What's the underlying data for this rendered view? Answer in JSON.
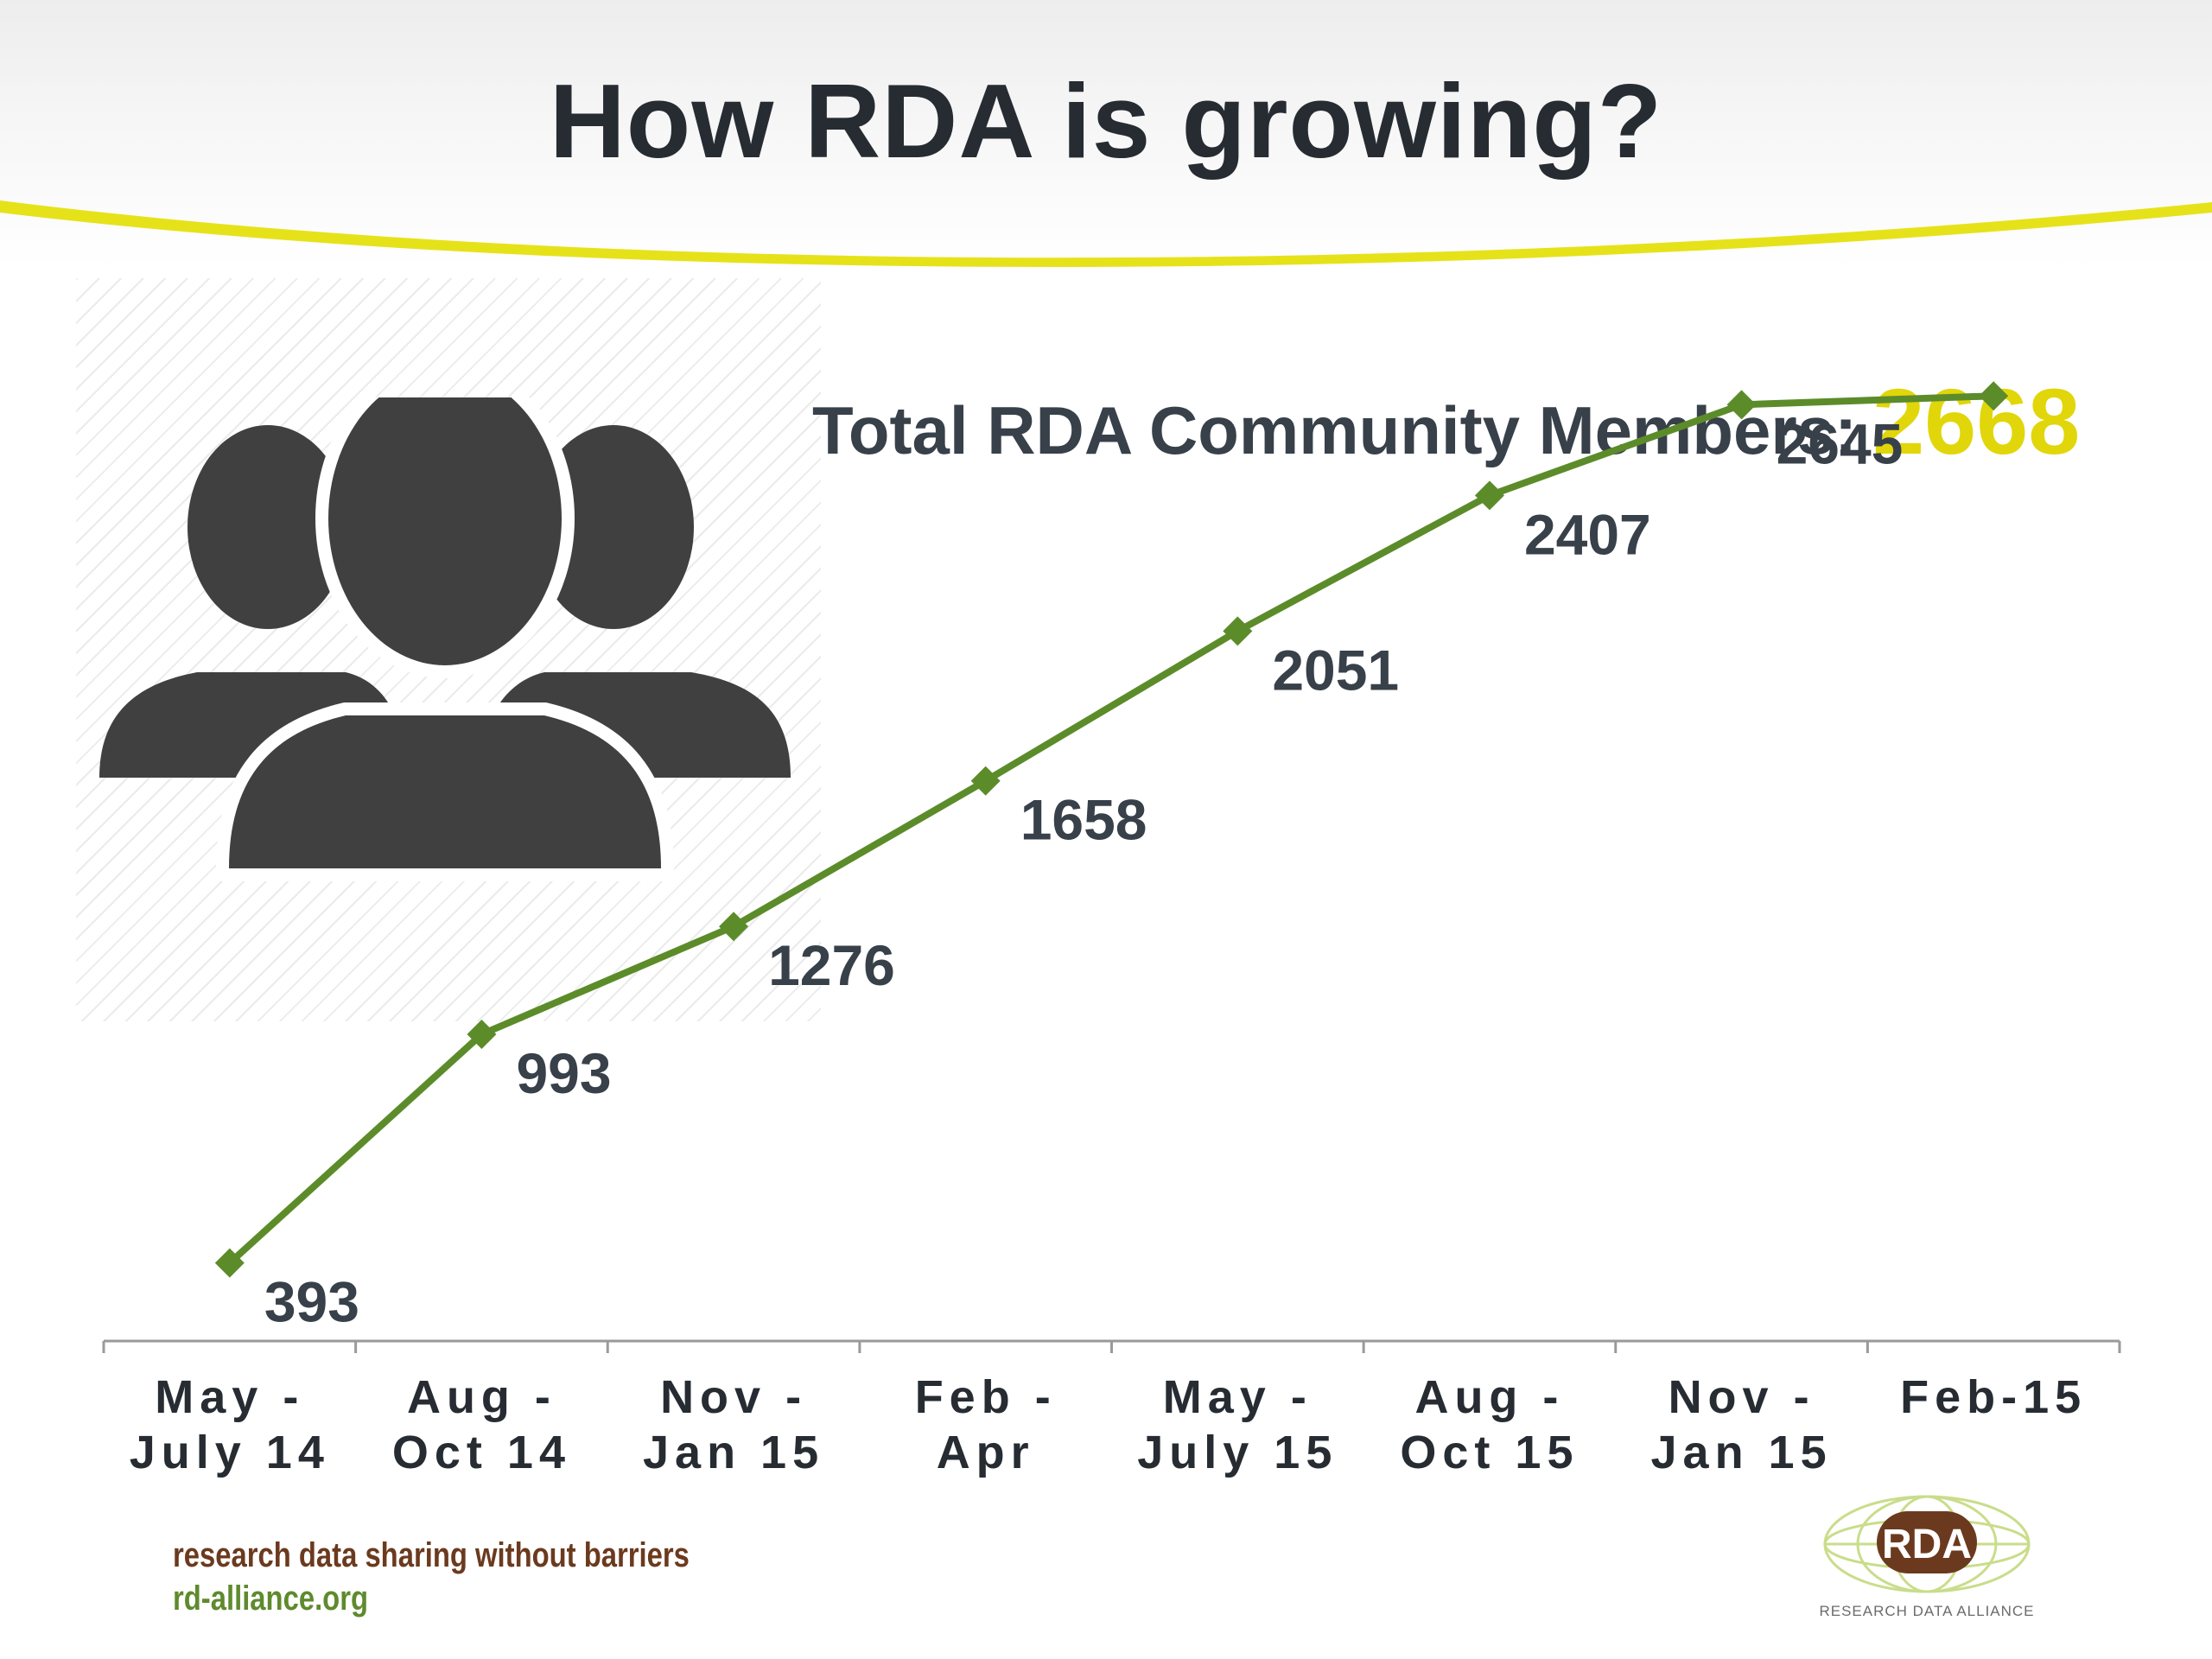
{
  "slide": {
    "title": "How RDA is growing?",
    "total_label": "Total RDA Community Members:",
    "total_value": "2668"
  },
  "footer": {
    "tagline": "research data sharing without barriers",
    "url": "rd-alliance.org",
    "logo_text": "RDA",
    "logo_subtitle": "RESEARCH DATA ALLIANCE"
  },
  "colors": {
    "line": "#5c8c2a",
    "title_text": "#262c32",
    "accent_yellow": "#e1d60a",
    "header_stripe": "#e6e21a",
    "icon_gray": "#404040",
    "logo_brown": "#6b3a1e"
  },
  "icons": [
    "people-group-icon",
    "rda-logo"
  ],
  "chart_data": {
    "type": "line",
    "title": "",
    "xlabel": "",
    "ylabel": "",
    "categories": [
      [
        "May -",
        "July 14"
      ],
      [
        "Aug -",
        "Oct 14"
      ],
      [
        "Nov -",
        "Jan 15"
      ],
      [
        "Feb -",
        "Apr"
      ],
      [
        "May -",
        "July 15"
      ],
      [
        "Aug -",
        "Oct 15"
      ],
      [
        "Nov -",
        "Jan 15"
      ],
      [
        "Feb-15"
      ]
    ],
    "series": [
      {
        "values": [
          393,
          993,
          1276,
          1658,
          2051,
          2407,
          2645,
          2668
        ],
        "data_labels": [
          "393",
          "993",
          "1276",
          "1658",
          "2051",
          "2407",
          "2645",
          ""
        ],
        "marker": "diamond"
      }
    ],
    "ylim": [
      0,
      2800
    ],
    "grid": false,
    "legend": "none",
    "y_axis_visible": false
  }
}
